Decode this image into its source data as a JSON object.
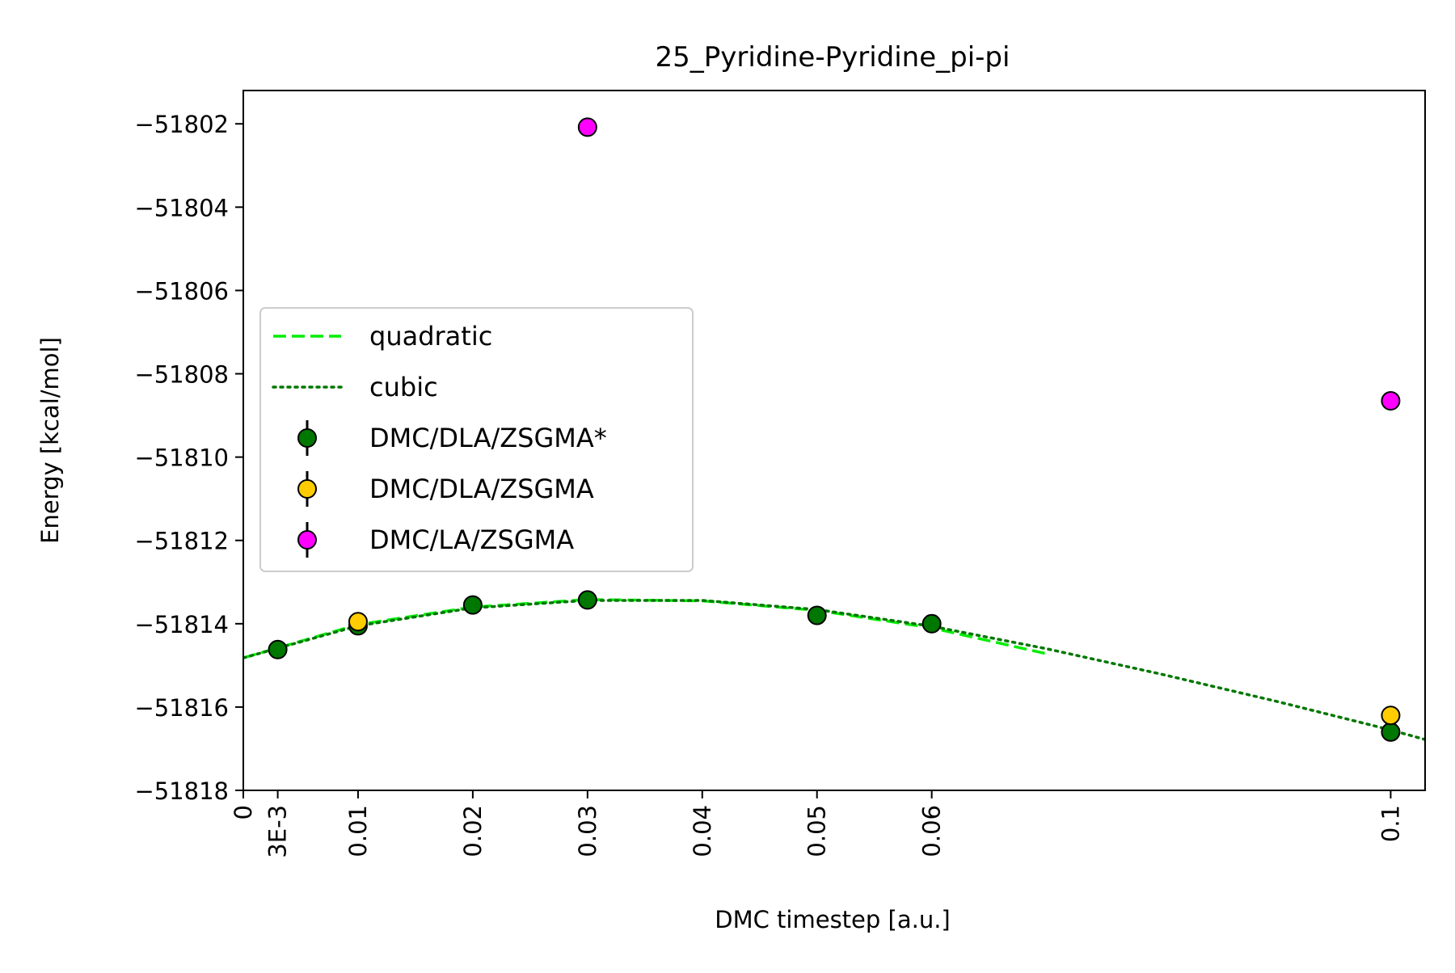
{
  "chart_data": {
    "type": "scatter",
    "title": "25_Pyridine-Pyridine_pi-pi",
    "xlabel": "DMC timestep [a.u.]",
    "ylabel": "Energy [kcal/mol]",
    "xlim": [
      0,
      0.103
    ],
    "ylim": [
      -51818.0,
      -51801.2
    ],
    "x_ticks": [
      {
        "value": 0,
        "label": "0"
      },
      {
        "value": 0.003,
        "label": "3E-3"
      },
      {
        "value": 0.01,
        "label": "0.01"
      },
      {
        "value": 0.02,
        "label": "0.02"
      },
      {
        "value": 0.03,
        "label": "0.03"
      },
      {
        "value": 0.04,
        "label": "0.04"
      },
      {
        "value": 0.05,
        "label": "0.05"
      },
      {
        "value": 0.06,
        "label": "0.06"
      },
      {
        "value": 0.1,
        "label": "0.1"
      }
    ],
    "y_ticks": [
      {
        "value": -51802,
        "label": "−51802"
      },
      {
        "value": -51804,
        "label": "−51804"
      },
      {
        "value": -51806,
        "label": "−51806"
      },
      {
        "value": -51808,
        "label": "−51808"
      },
      {
        "value": -51810,
        "label": "−51810"
      },
      {
        "value": -51812,
        "label": "−51812"
      },
      {
        "value": -51814,
        "label": "−51814"
      },
      {
        "value": -51816,
        "label": "−51816"
      },
      {
        "value": -51818,
        "label": "−51818"
      }
    ],
    "grid": false,
    "legend_position": "center-left",
    "fits": [
      {
        "name": "quadratic",
        "style": "dashed",
        "color": "#00ee00",
        "x": [
          0,
          0.01,
          0.02,
          0.03,
          0.04,
          0.05,
          0.06,
          0.07
        ],
        "y": [
          -51814.82,
          -51814.02,
          -51813.6,
          -51813.42,
          -51813.45,
          -51813.68,
          -51814.1,
          -51814.72
        ]
      },
      {
        "name": "cubic",
        "style": "dotted",
        "color": "#007700",
        "x": [
          0,
          0.01,
          0.02,
          0.03,
          0.04,
          0.05,
          0.06,
          0.07,
          0.08,
          0.09,
          0.1,
          0.103
        ],
        "y": [
          -51814.82,
          -51814.05,
          -51813.62,
          -51813.44,
          -51813.44,
          -51813.66,
          -51814.06,
          -51814.6,
          -51815.21,
          -51815.86,
          -51816.55,
          -51816.78
        ]
      }
    ],
    "series": [
      {
        "name": "DMC/DLA/ZSGMA*",
        "color": "#007700",
        "points": [
          {
            "x": 0.003,
            "y": -51814.62
          },
          {
            "x": 0.01,
            "y": -51814.05
          },
          {
            "x": 0.02,
            "y": -51813.55
          },
          {
            "x": 0.03,
            "y": -51813.43
          },
          {
            "x": 0.05,
            "y": -51813.8
          },
          {
            "x": 0.06,
            "y": -51814.0
          },
          {
            "x": 0.1,
            "y": -51816.6
          }
        ]
      },
      {
        "name": "DMC/DLA/ZSGMA",
        "color": "#ffcc00",
        "points": [
          {
            "x": 0.01,
            "y": -51813.95
          },
          {
            "x": 0.1,
            "y": -51816.2
          }
        ]
      },
      {
        "name": "DMC/LA/ZSGMA",
        "color": "#ff00ff",
        "points": [
          {
            "x": 0.03,
            "y": -51802.08
          },
          {
            "x": 0.1,
            "y": -51808.65
          }
        ]
      }
    ]
  }
}
